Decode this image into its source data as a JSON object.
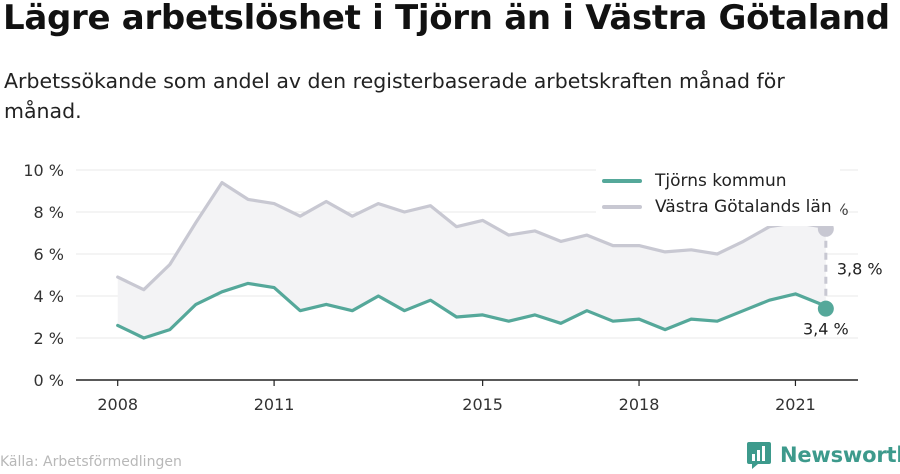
{
  "title": "Lägre arbetslöshet i Tjörn än i Västra Götaland",
  "subtitle": "Arbetssökande som andel av den registerbaserade arbetskraften månad för månad.",
  "source": "Källa: Arbetsförmedlingen",
  "brand": {
    "name": "Newsworthy",
    "icon": "newsworthy-logo-icon"
  },
  "colors": {
    "tjorn": "#55a89a",
    "vg": "#c8c8d2",
    "band": "#f3f3f5",
    "axis": "#222222",
    "grid": "#e8e8e8"
  },
  "chart_data": {
    "type": "line",
    "title": "Lägre arbetslöshet i Tjörn än i Västra Götaland",
    "ylabel": "",
    "xlabel": "",
    "ylim": [
      0,
      10
    ],
    "yticks": [
      0,
      2,
      4,
      6,
      8,
      10
    ],
    "ytick_labels": [
      "0 %",
      "2 %",
      "4 %",
      "6 %",
      "8 %",
      "10 %"
    ],
    "xticks": [
      2008,
      2011,
      2015,
      2018,
      2021
    ],
    "xtick_labels": [
      "2008",
      "2011",
      "2015",
      "2018",
      "2021"
    ],
    "grid": true,
    "legend_position": "top-right",
    "x": [
      2008.0,
      2008.5,
      2009.0,
      2009.5,
      2010.0,
      2010.5,
      2011.0,
      2011.5,
      2012.0,
      2012.5,
      2013.0,
      2013.5,
      2014.0,
      2014.5,
      2015.0,
      2015.5,
      2016.0,
      2016.5,
      2017.0,
      2017.5,
      2018.0,
      2018.5,
      2019.0,
      2019.5,
      2020.0,
      2020.5,
      2021.0,
      2021.5,
      2021.583
    ],
    "series": [
      {
        "name": "Tjörns kommun",
        "values": [
          2.6,
          2.0,
          2.4,
          3.6,
          4.2,
          4.6,
          4.4,
          3.3,
          3.6,
          3.3,
          4.0,
          3.3,
          3.8,
          3.0,
          3.1,
          2.8,
          3.1,
          2.7,
          3.3,
          2.8,
          2.9,
          2.4,
          2.9,
          2.8,
          3.3,
          3.8,
          4.1,
          3.6,
          3.4
        ]
      },
      {
        "name": "Västra Götalands län",
        "values": [
          4.9,
          4.3,
          5.5,
          7.5,
          9.4,
          8.6,
          8.4,
          7.8,
          8.5,
          7.8,
          8.4,
          8.0,
          8.3,
          7.3,
          7.6,
          6.9,
          7.1,
          6.6,
          6.9,
          6.4,
          6.4,
          6.1,
          6.2,
          6.0,
          6.6,
          7.3,
          7.5,
          7.3,
          7.2
        ]
      }
    ],
    "annotations": [
      {
        "series": "Tjörns kommun",
        "label": "3,4 %"
      },
      {
        "series": "Västra Götalands län",
        "label": "7,2 %"
      },
      {
        "label": "3,8 %",
        "type": "difference"
      }
    ]
  }
}
